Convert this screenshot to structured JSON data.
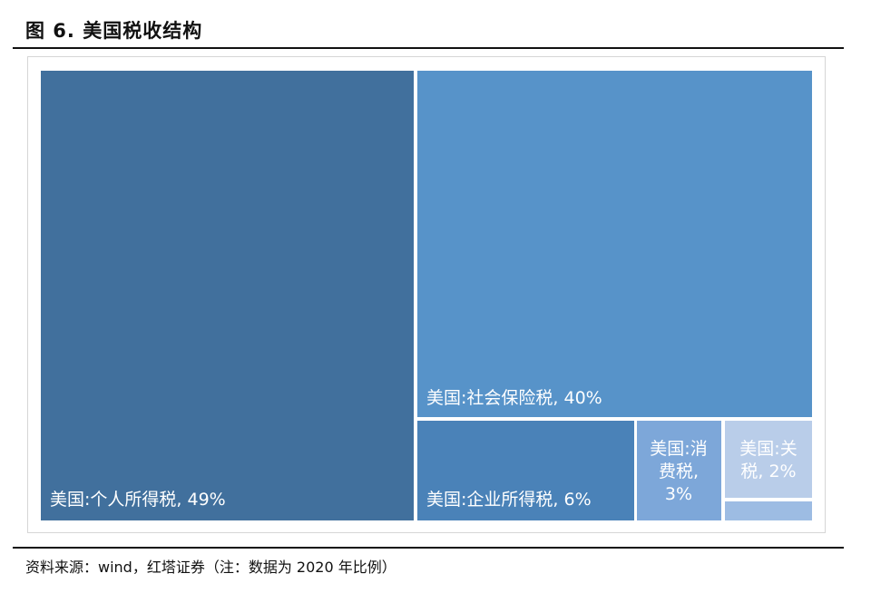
{
  "figure": {
    "title": "图 6. 美国税收结构",
    "source": "资料来源：wind，红塔证券（注：数据为 2020 年比例）"
  },
  "chart_data": {
    "type": "treemap",
    "items": [
      {
        "label": "美国:个人所得税, 49%",
        "name": "美国:个人所得税",
        "value": 49,
        "color": "#41709D"
      },
      {
        "label": "美国:社会保险税, 40%",
        "name": "美国:社会保险税",
        "value": 40,
        "color": "#5793C9"
      },
      {
        "label": "美国:企业所得税, 6%",
        "name": "美国:企业所得税",
        "value": 6,
        "color": "#4A82B8"
      },
      {
        "label": "美国:消费税, 3%",
        "name": "美国:消费税",
        "value": 3,
        "color": "#7DA7D9"
      },
      {
        "label": "美国:关税, 2%",
        "name": "美国:关税",
        "value": 2,
        "color": "#B9CDE9"
      },
      {
        "label": "",
        "name": "",
        "value": 0.5,
        "color": "#9DBCE3"
      }
    ]
  }
}
